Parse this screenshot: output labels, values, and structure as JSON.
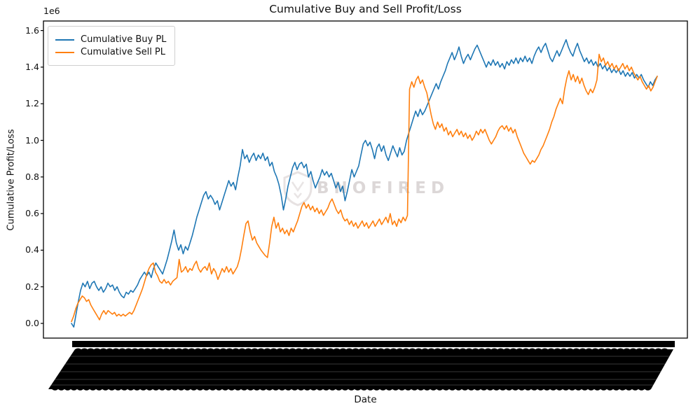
{
  "title": "Cumulative Buy and Sell Profit/Loss",
  "watermark": {
    "text": "BNOFIRED"
  },
  "colors": {
    "buy": "#1f77b4",
    "sell": "#ff7f0e",
    "axis": "#000000",
    "watermark": "#c9bfbf"
  },
  "chart_data": {
    "type": "line",
    "title": "Cumulative Buy and Sell Profit/Loss",
    "xlabel": "Date",
    "ylabel": "Cumulative Profit/Loss",
    "y_offset_label": "1e6",
    "y_unit": "1e6",
    "y_ticks_1e6": [
      0.0,
      0.2,
      0.4,
      0.6,
      0.8,
      1.0,
      1.2,
      1.4,
      1.6
    ],
    "ylim_1e6": [
      -0.08,
      1.65
    ],
    "grid": false,
    "legend_position": "upper left",
    "x_tick_labels": {
      "legible": false,
      "note": "hundreds of overlapping rotated date tick labels rendered as a solid black band"
    },
    "series": [
      {
        "name": "Cumulative Buy PL",
        "color": "#1f77b4",
        "values_1e6": [
          0.0,
          -0.02,
          0.05,
          0.12,
          0.18,
          0.22,
          0.2,
          0.23,
          0.19,
          0.22,
          0.23,
          0.2,
          0.18,
          0.2,
          0.17,
          0.19,
          0.22,
          0.2,
          0.21,
          0.18,
          0.2,
          0.17,
          0.15,
          0.14,
          0.17,
          0.16,
          0.18,
          0.17,
          0.19,
          0.21,
          0.24,
          0.26,
          0.28,
          0.26,
          0.28,
          0.25,
          0.3,
          0.33,
          0.31,
          0.29,
          0.27,
          0.31,
          0.35,
          0.4,
          0.45,
          0.51,
          0.44,
          0.4,
          0.43,
          0.38,
          0.42,
          0.4,
          0.44,
          0.48,
          0.53,
          0.58,
          0.62,
          0.66,
          0.7,
          0.72,
          0.68,
          0.7,
          0.68,
          0.65,
          0.67,
          0.62,
          0.66,
          0.7,
          0.74,
          0.78,
          0.75,
          0.77,
          0.73,
          0.8,
          0.86,
          0.95,
          0.9,
          0.92,
          0.88,
          0.91,
          0.93,
          0.89,
          0.92,
          0.9,
          0.93,
          0.89,
          0.91,
          0.86,
          0.88,
          0.83,
          0.8,
          0.76,
          0.7,
          0.62,
          0.68,
          0.75,
          0.8,
          0.85,
          0.88,
          0.84,
          0.87,
          0.88,
          0.85,
          0.87,
          0.8,
          0.83,
          0.78,
          0.74,
          0.77,
          0.8,
          0.84,
          0.81,
          0.83,
          0.8,
          0.82,
          0.78,
          0.74,
          0.77,
          0.72,
          0.75,
          0.67,
          0.72,
          0.78,
          0.84,
          0.8,
          0.83,
          0.86,
          0.92,
          0.98,
          1.0,
          0.97,
          0.99,
          0.95,
          0.9,
          0.96,
          0.98,
          0.94,
          0.97,
          0.92,
          0.89,
          0.93,
          0.97,
          0.94,
          0.91,
          0.96,
          0.92,
          0.94,
          1.0,
          1.04,
          1.08,
          1.12,
          1.16,
          1.13,
          1.17,
          1.14,
          1.16,
          1.19,
          1.22,
          1.25,
          1.28,
          1.31,
          1.28,
          1.32,
          1.35,
          1.38,
          1.42,
          1.45,
          1.48,
          1.44,
          1.47,
          1.51,
          1.46,
          1.42,
          1.45,
          1.47,
          1.44,
          1.47,
          1.5,
          1.52,
          1.49,
          1.46,
          1.43,
          1.4,
          1.43,
          1.41,
          1.44,
          1.41,
          1.43,
          1.4,
          1.42,
          1.39,
          1.43,
          1.41,
          1.44,
          1.42,
          1.45,
          1.42,
          1.45,
          1.43,
          1.46,
          1.43,
          1.45,
          1.42,
          1.46,
          1.49,
          1.51,
          1.48,
          1.51,
          1.53,
          1.49,
          1.45,
          1.43,
          1.46,
          1.49,
          1.46,
          1.49,
          1.52,
          1.55,
          1.51,
          1.48,
          1.46,
          1.5,
          1.53,
          1.49,
          1.46,
          1.43,
          1.45,
          1.42,
          1.44,
          1.41,
          1.43,
          1.4,
          1.42,
          1.39,
          1.41,
          1.38,
          1.4,
          1.37,
          1.39,
          1.37,
          1.39,
          1.36,
          1.38,
          1.35,
          1.37,
          1.35,
          1.37,
          1.34,
          1.36,
          1.34,
          1.36,
          1.33,
          1.31,
          1.29,
          1.32,
          1.3,
          1.33,
          1.35
        ]
      },
      {
        "name": "Cumulative Sell PL",
        "color": "#ff7f0e",
        "values_1e6": [
          0.01,
          0.04,
          0.08,
          0.11,
          0.13,
          0.15,
          0.14,
          0.12,
          0.13,
          0.1,
          0.08,
          0.06,
          0.04,
          0.02,
          0.05,
          0.07,
          0.05,
          0.07,
          0.06,
          0.05,
          0.06,
          0.04,
          0.05,
          0.04,
          0.05,
          0.04,
          0.05,
          0.06,
          0.05,
          0.07,
          0.1,
          0.13,
          0.16,
          0.19,
          0.23,
          0.27,
          0.3,
          0.32,
          0.33,
          0.28,
          0.26,
          0.23,
          0.22,
          0.24,
          0.22,
          0.23,
          0.21,
          0.23,
          0.24,
          0.25,
          0.35,
          0.28,
          0.29,
          0.31,
          0.28,
          0.3,
          0.29,
          0.32,
          0.34,
          0.3,
          0.28,
          0.3,
          0.31,
          0.29,
          0.33,
          0.27,
          0.3,
          0.28,
          0.24,
          0.27,
          0.3,
          0.28,
          0.31,
          0.28,
          0.3,
          0.27,
          0.29,
          0.31,
          0.35,
          0.41,
          0.48,
          0.545,
          0.56,
          0.5,
          0.455,
          0.475,
          0.44,
          0.42,
          0.4,
          0.385,
          0.37,
          0.36,
          0.44,
          0.53,
          0.58,
          0.52,
          0.55,
          0.5,
          0.52,
          0.49,
          0.51,
          0.48,
          0.52,
          0.5,
          0.53,
          0.56,
          0.6,
          0.64,
          0.66,
          0.63,
          0.65,
          0.62,
          0.64,
          0.61,
          0.63,
          0.6,
          0.62,
          0.59,
          0.61,
          0.63,
          0.66,
          0.68,
          0.65,
          0.62,
          0.6,
          0.62,
          0.58,
          0.56,
          0.57,
          0.54,
          0.56,
          0.53,
          0.55,
          0.52,
          0.54,
          0.56,
          0.53,
          0.55,
          0.52,
          0.54,
          0.56,
          0.53,
          0.55,
          0.57,
          0.54,
          0.56,
          0.58,
          0.55,
          0.6,
          0.54,
          0.56,
          0.53,
          0.57,
          0.55,
          0.58,
          0.56,
          0.59,
          1.28,
          1.32,
          1.29,
          1.33,
          1.35,
          1.31,
          1.33,
          1.29,
          1.26,
          1.2,
          1.14,
          1.09,
          1.06,
          1.1,
          1.07,
          1.09,
          1.05,
          1.07,
          1.03,
          1.05,
          1.02,
          1.04,
          1.06,
          1.03,
          1.05,
          1.02,
          1.04,
          1.01,
          1.03,
          1.0,
          1.02,
          1.05,
          1.03,
          1.06,
          1.04,
          1.06,
          1.03,
          1.0,
          0.98,
          1.0,
          1.02,
          1.05,
          1.07,
          1.08,
          1.06,
          1.08,
          1.05,
          1.07,
          1.04,
          1.06,
          1.02,
          0.99,
          0.96,
          0.93,
          0.91,
          0.89,
          0.87,
          0.89,
          0.88,
          0.9,
          0.92,
          0.95,
          0.97,
          1.0,
          1.03,
          1.06,
          1.1,
          1.13,
          1.17,
          1.2,
          1.23,
          1.2,
          1.28,
          1.34,
          1.38,
          1.33,
          1.36,
          1.32,
          1.35,
          1.31,
          1.34,
          1.3,
          1.27,
          1.25,
          1.28,
          1.26,
          1.29,
          1.33,
          1.47,
          1.43,
          1.45,
          1.41,
          1.43,
          1.4,
          1.42,
          1.39,
          1.41,
          1.38,
          1.4,
          1.42,
          1.39,
          1.41,
          1.38,
          1.4,
          1.37,
          1.35,
          1.33,
          1.35,
          1.32,
          1.3,
          1.28,
          1.3,
          1.27,
          1.29,
          1.32,
          1.35
        ]
      }
    ]
  }
}
